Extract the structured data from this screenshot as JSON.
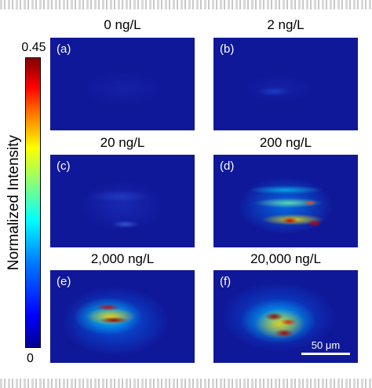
{
  "colorbar": {
    "max_label": "0.45",
    "min_label": "0",
    "axis_label": "Normalized Intensity"
  },
  "panels": [
    {
      "letter": "(a)",
      "title": "0 ng/L"
    },
    {
      "letter": "(b)",
      "title": "2 ng/L"
    },
    {
      "letter": "(c)",
      "title": "20 ng/L"
    },
    {
      "letter": "(d)",
      "title": "200 ng/L"
    },
    {
      "letter": "(e)",
      "title": "2,000 ng/L"
    },
    {
      "letter": "(f)",
      "title": "20,000 ng/L"
    }
  ],
  "scalebar": {
    "label": "50 μm"
  }
}
